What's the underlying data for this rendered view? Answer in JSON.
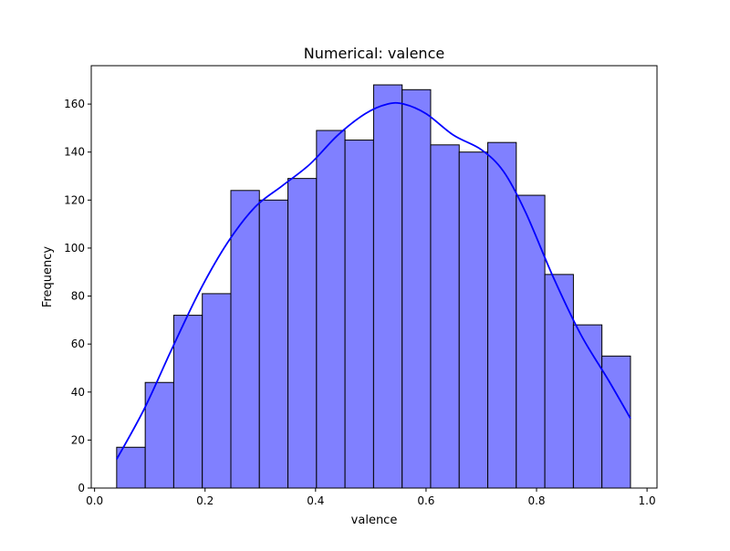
{
  "chart_data": {
    "type": "bar",
    "title": "Numerical: valence",
    "xlabel": "valence",
    "ylabel": "Frequency",
    "xlim": [
      -0.006,
      1.018
    ],
    "ylim": [
      0,
      176
    ],
    "xticks": [
      0.0,
      0.2,
      0.4,
      0.6,
      0.8,
      1.0
    ],
    "xtick_labels": [
      "0.0",
      "0.2",
      "0.4",
      "0.6",
      "0.8",
      "1.0"
    ],
    "yticks": [
      0,
      20,
      40,
      60,
      80,
      100,
      120,
      140,
      160
    ],
    "ytick_labels": [
      "0",
      "20",
      "40",
      "60",
      "80",
      "100",
      "120",
      "140",
      "160"
    ],
    "grid": false,
    "bin_edges": [
      0.04,
      0.0917,
      0.1433,
      0.195,
      0.2467,
      0.2983,
      0.35,
      0.4017,
      0.4533,
      0.505,
      0.5567,
      0.6083,
      0.66,
      0.7117,
      0.7633,
      0.815,
      0.8667,
      0.9183,
      0.97
    ],
    "values": [
      17,
      44,
      72,
      81,
      124,
      120,
      129,
      149,
      145,
      168,
      166,
      143,
      140,
      144,
      122,
      89,
      68,
      55
    ],
    "bar_color": "#8080ff",
    "edge_color": "#000000",
    "kde": {
      "color": "#0000ff",
      "x": [
        0.04,
        0.09,
        0.14,
        0.19,
        0.24,
        0.29,
        0.34,
        0.39,
        0.44,
        0.49,
        0.53,
        0.56,
        0.6,
        0.65,
        0.7,
        0.74,
        0.78,
        0.83,
        0.88,
        0.93,
        0.97
      ],
      "y": [
        12,
        33,
        58,
        82,
        102,
        117,
        126,
        135,
        147,
        156,
        160,
        160,
        156,
        147,
        141,
        132,
        115,
        88,
        64,
        45,
        29
      ]
    }
  }
}
